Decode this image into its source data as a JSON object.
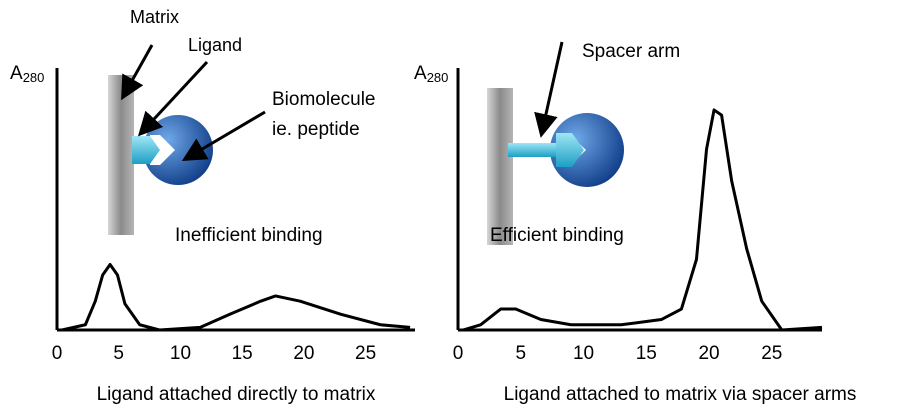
{
  "chart_data": [
    {
      "type": "line",
      "title": "Ligand attached directly to matrix",
      "y_label": "A",
      "y_label_sub": "280",
      "annotations": [
        "Matrix",
        "Ligand",
        "Biomolecule",
        "ie. peptide",
        "Inefficient binding"
      ],
      "xlim": [
        0,
        29
      ],
      "ylim": [
        0,
        100
      ],
      "xticks": [
        0,
        5,
        10,
        15,
        20,
        25
      ],
      "color": "#000000",
      "series": [
        {
          "x": [
            0.4,
            2.3,
            3.1,
            3.7,
            4.3,
            4.9,
            5.5,
            6.7,
            8.3,
            11.6,
            14,
            16.5,
            17.7,
            19.7,
            23,
            26.2,
            28.6
          ],
          "values": [
            0,
            2,
            11,
            21,
            25,
            21,
            10,
            2,
            0,
            1,
            6,
            11,
            13,
            11,
            6,
            2,
            1
          ]
        }
      ]
    },
    {
      "type": "line",
      "title": "Ligand attached to matrix via spacer arms",
      "y_label": "A",
      "y_label_sub": "280",
      "annotations": [
        "Spacer arm",
        "Efficient binding"
      ],
      "xlim": [
        0,
        29
      ],
      "ylim": [
        0,
        100
      ],
      "xticks": [
        0,
        5,
        10,
        15,
        20,
        25
      ],
      "color": "#000000",
      "series": [
        {
          "x": [
            0.4,
            1.8,
            3.4,
            4.6,
            6.6,
            9,
            13,
            16.2,
            17.8,
            19,
            19.8,
            20.4,
            21,
            21.8,
            23,
            24.2,
            25.8,
            29
          ],
          "values": [
            0,
            2,
            8,
            8,
            4,
            2,
            2,
            4,
            8,
            27,
            69,
            84,
            82,
            57,
            31,
            11,
            0,
            1
          ]
        }
      ]
    }
  ]
}
